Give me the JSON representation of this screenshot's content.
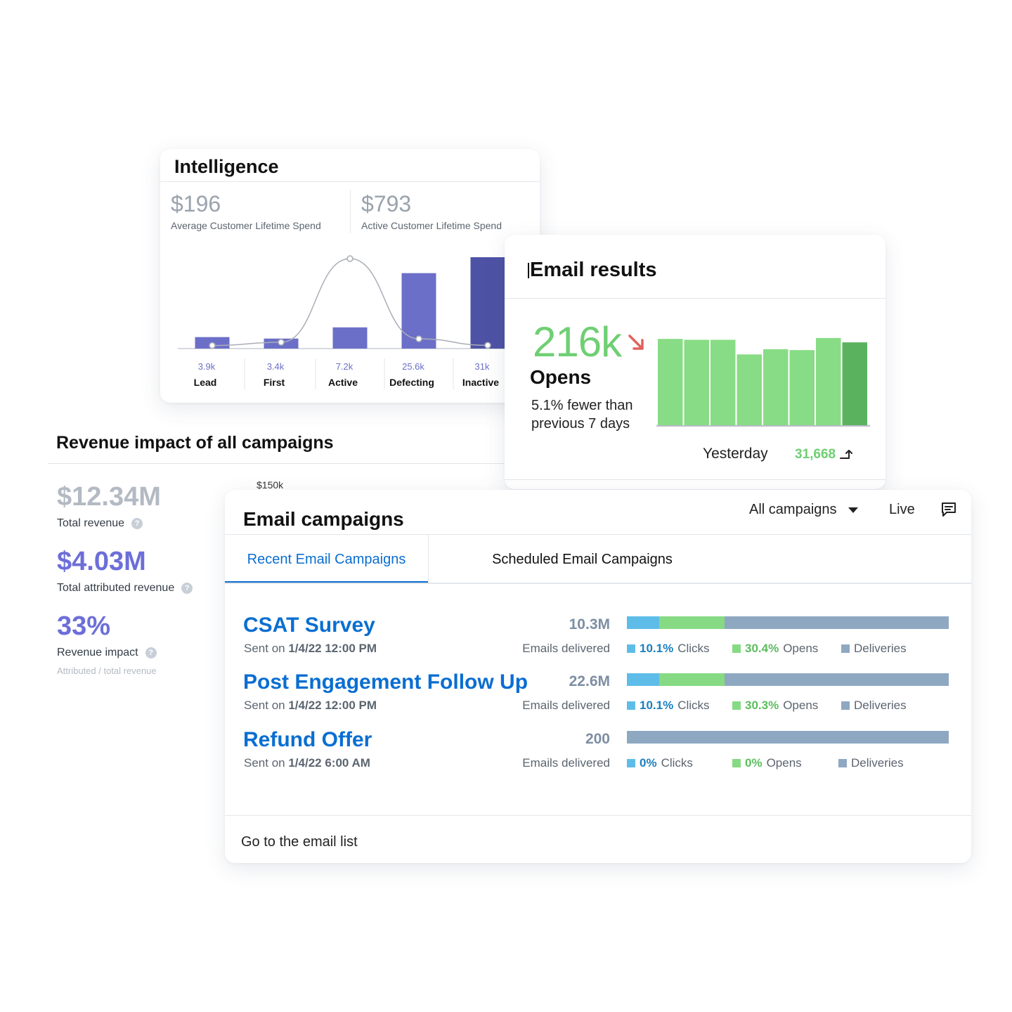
{
  "intelligence": {
    "title": "Intelligence",
    "kpis": [
      {
        "value": "$196",
        "label": "Average Customer Lifetime Spend"
      },
      {
        "value": "$793",
        "label": "Active Customer Lifetime Spend"
      }
    ],
    "chart_data": {
      "type": "bar",
      "categories": [
        "Lead",
        "First",
        "Active",
        "Defecting",
        "Inactive"
      ],
      "value_labels": [
        "3.9k",
        "3.4k",
        "7.2k",
        "25.6k",
        "31k"
      ],
      "values": [
        3.9,
        3.4,
        7.2,
        25.6,
        31
      ],
      "line_values": [
        0.3,
        4,
        100,
        8,
        0.5
      ],
      "bar_colors": [
        "#6c6fc8",
        "#6c6fc8",
        "#6c6fc8",
        "#6c6fc8",
        "#4e52a5"
      ]
    }
  },
  "revenue": {
    "title": "Revenue impact of all campaigns",
    "total_revenue": {
      "value": "$12.34M",
      "label": "Total revenue"
    },
    "attributed": {
      "value": "$4.03M",
      "label": "Total attributed revenue"
    },
    "impact": {
      "value": "33%",
      "label": "Revenue impact",
      "sub": "Attributed / total revenue"
    },
    "axis_label": "$150k",
    "help_glyph": "?"
  },
  "email_results": {
    "title": "Email results",
    "big_value": "216k",
    "metric": "Opens",
    "description": "5.1% fewer than previous 7 days",
    "yesterday_label": "Yesterday",
    "yesterday_value": "31,668",
    "chart_data": {
      "type": "bar",
      "values": [
        100,
        99,
        99,
        82,
        88,
        87,
        101,
        96
      ],
      "colors": [
        "#88dc85",
        "#88dc85",
        "#88dc85",
        "#88dc85",
        "#88dc85",
        "#88dc85",
        "#88dc85",
        "#5bb25e"
      ]
    }
  },
  "campaigns": {
    "title": "Email campaigns",
    "filter": "All campaigns",
    "live": "Live",
    "tabs": [
      "Recent Email Campaigns",
      "Scheduled Email Campaigns"
    ],
    "items": [
      {
        "name": "CSAT Survey",
        "sent_prefix": "Sent on",
        "sent_date": "1/4/22 12:00 PM",
        "count": "10.3M",
        "delivered": "Emails delivered",
        "clicks": 10.1,
        "opens": 30.4,
        "clicks_label": "10.1%",
        "opens_label": "30.4%",
        "clicks_word": "Clicks",
        "opens_word": "Opens",
        "deliveries_word": "Deliveries"
      },
      {
        "name": "Post Engagement Follow Up",
        "sent_prefix": "Sent on",
        "sent_date": "1/4/22 12:00 PM",
        "count": "22.6M",
        "delivered": "Emails delivered",
        "clicks": 10.1,
        "opens": 30.3,
        "clicks_label": "10.1%",
        "opens_label": "30.3%",
        "clicks_word": "Clicks",
        "opens_word": "Opens",
        "deliveries_word": "Deliveries"
      },
      {
        "name": "Refund Offer",
        "sent_prefix": "Sent on",
        "sent_date": "1/4/22 6:00 AM",
        "count": "200",
        "delivered": "Emails delivered",
        "clicks": 0,
        "opens": 0,
        "clicks_label": "0%",
        "opens_label": "0%",
        "clicks_word": "Clicks",
        "opens_word": "Opens",
        "deliveries_word": "Deliveries"
      }
    ],
    "footer_link": "Go to the email list"
  }
}
